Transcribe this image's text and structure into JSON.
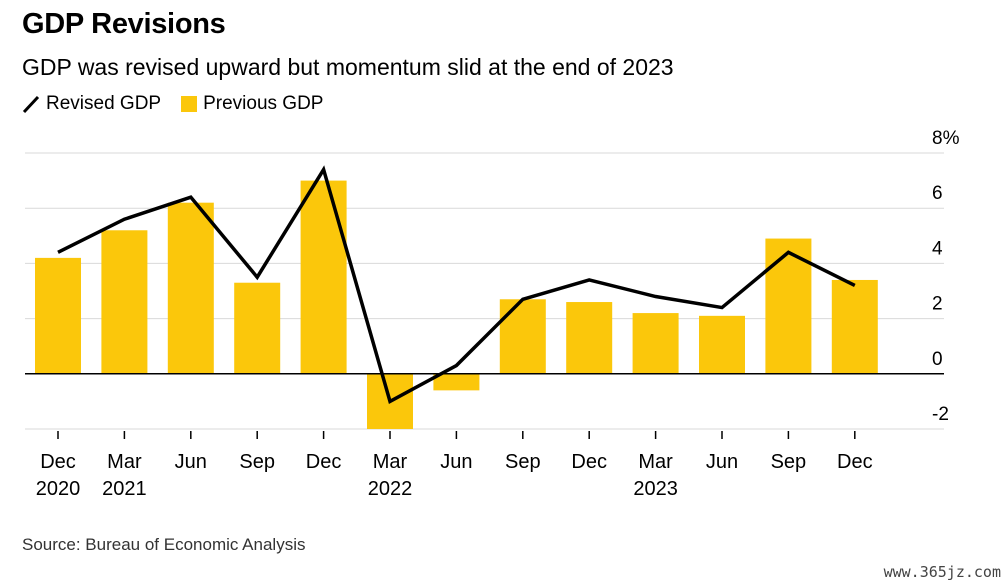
{
  "title": "GDP Revisions",
  "subtitle": "GDP was revised upward but momentum slid at the end of 2023",
  "legend": {
    "line_label": "Revised GDP",
    "bar_label": "Previous GDP"
  },
  "source": "Source: Bureau of Economic Analysis",
  "watermark": "www.365jz.com",
  "colors": {
    "bar": "#fbc70b",
    "line": "#000000",
    "grid": "#d9d9d9",
    "axis": "#000000"
  },
  "chart_data": {
    "type": "bar",
    "categories": [
      "Dec 2020",
      "Mar 2021",
      "Jun 2021",
      "Sep 2021",
      "Dec 2021",
      "Mar 2022",
      "Jun 2022",
      "Sep 2022",
      "Dec 2022",
      "Mar 2023",
      "Jun 2023",
      "Sep 2023",
      "Dec 2023"
    ],
    "tick_labels": [
      [
        "Dec",
        "2020"
      ],
      [
        "Mar",
        "2021"
      ],
      [
        "Jun",
        ""
      ],
      [
        "Sep",
        ""
      ],
      [
        "Dec",
        ""
      ],
      [
        "Mar",
        "2022"
      ],
      [
        "Jun",
        ""
      ],
      [
        "Sep",
        ""
      ],
      [
        "Dec",
        ""
      ],
      [
        "Mar",
        "2023"
      ],
      [
        "Jun",
        ""
      ],
      [
        "Sep",
        ""
      ],
      [
        "Dec",
        ""
      ]
    ],
    "series": [
      {
        "name": "Previous GDP",
        "type": "bar",
        "values": [
          4.2,
          5.2,
          6.2,
          3.3,
          7.0,
          -2.0,
          -0.6,
          2.7,
          2.6,
          2.2,
          2.1,
          4.9,
          3.4
        ]
      },
      {
        "name": "Revised GDP",
        "type": "line",
        "values": [
          4.4,
          5.6,
          6.4,
          3.5,
          7.4,
          -1.0,
          0.3,
          2.7,
          3.4,
          2.8,
          2.4,
          4.4,
          3.2
        ]
      }
    ],
    "yticks": [
      -2,
      0,
      2,
      4,
      6,
      8
    ],
    "ytick_labels": [
      "-2",
      "0",
      "2",
      "4",
      "6",
      "8%"
    ],
    "ylim": [
      -2,
      8
    ],
    "y_axis_side": "right",
    "grid": true
  }
}
